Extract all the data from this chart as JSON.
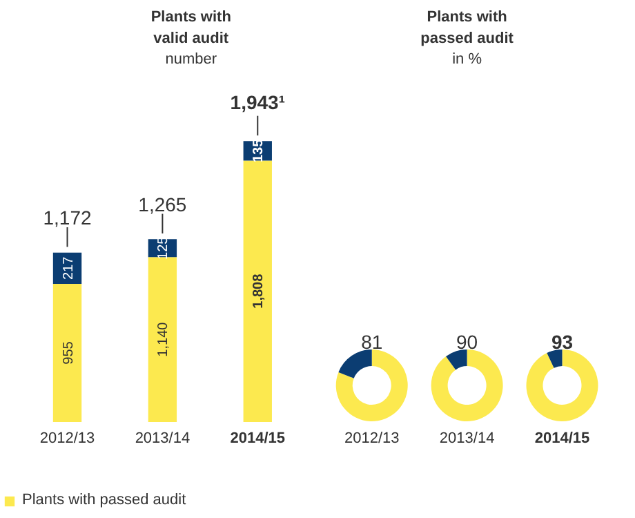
{
  "chart_data": [
    {
      "type": "bar",
      "title": "Plants with valid audit",
      "subtitle": "number",
      "categories": [
        "2012/13",
        "2013/14",
        "2014/15"
      ],
      "stacked": true,
      "totals": [
        "1,172",
        "1,265",
        "1,943¹"
      ],
      "legend": "bottom",
      "grid": false,
      "series": [
        {
          "name": "Plants with passed audit",
          "color": "#fce94f",
          "values": [
            955,
            1140,
            1808
          ],
          "value_labels": [
            "955",
            "1,140",
            "1,808"
          ]
        },
        {
          "color": "#0b3d72",
          "values": [
            217,
            125,
            135
          ],
          "value_labels": [
            "217",
            "125",
            "135"
          ]
        }
      ]
    },
    {
      "type": "donut",
      "xlabel": "2012/13",
      "categories": [
        null,
        null
      ],
      "values": [
        81,
        19
      ],
      "colors": [
        "#fce94f",
        "#0b3d72"
      ],
      "value_labels": [
        "81",
        null
      ]
    },
    {
      "type": "donut",
      "title": "Plants with passed audit",
      "subtitle": "in %",
      "xlabel": "2013/14",
      "categories": [
        null,
        null
      ],
      "values": [
        90,
        10
      ],
      "colors": [
        "#fce94f",
        "#0b3d72"
      ],
      "value_labels": [
        "90",
        null
      ]
    },
    {
      "type": "donut",
      "xlabel": "2014/15",
      "categories": [
        null,
        null
      ],
      "values": [
        93,
        7
      ],
      "colors": [
        "#fce94f",
        "#0b3d72"
      ],
      "value_labels": [
        "93",
        null
      ]
    }
  ]
}
